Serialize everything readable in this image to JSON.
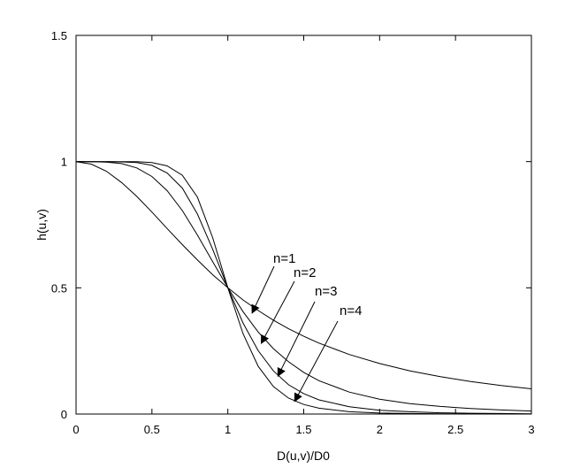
{
  "chart_data": {
    "type": "line",
    "title": "",
    "xlabel": "D(u,v)/D0",
    "ylabel": "h(u,v)",
    "xlim": [
      0,
      3
    ],
    "ylim": [
      0,
      1.5
    ],
    "xticks": [
      "0",
      "0.5",
      "1",
      "1.5",
      "2",
      "2.5",
      "3"
    ],
    "yticks": [
      "0",
      "0.5",
      "1",
      "1.5"
    ],
    "grid": false,
    "legend": "none",
    "line_color": "#000000",
    "formula_note_free": true,
    "series": [
      {
        "name": "n=1",
        "x": [
          0,
          0.1,
          0.2,
          0.3,
          0.4,
          0.5,
          0.6,
          0.7,
          0.8,
          0.9,
          1.0,
          1.1,
          1.2,
          1.3,
          1.4,
          1.5,
          1.6,
          1.8,
          2.0,
          2.2,
          2.4,
          2.6,
          2.8,
          3.0
        ],
        "values": [
          1.0,
          0.99,
          0.962,
          0.917,
          0.862,
          0.8,
          0.735,
          0.671,
          0.61,
          0.552,
          0.5,
          0.452,
          0.41,
          0.372,
          0.338,
          0.308,
          0.281,
          0.236,
          0.2,
          0.171,
          0.148,
          0.129,
          0.113,
          0.1
        ]
      },
      {
        "name": "n=2",
        "x": [
          0,
          0.1,
          0.2,
          0.3,
          0.4,
          0.5,
          0.6,
          0.7,
          0.8,
          0.9,
          1.0,
          1.1,
          1.2,
          1.3,
          1.4,
          1.5,
          1.6,
          1.8,
          2.0,
          2.2,
          2.4,
          2.6,
          2.8,
          3.0
        ],
        "values": [
          1.0,
          1.0,
          0.998,
          0.992,
          0.975,
          0.941,
          0.885,
          0.806,
          0.709,
          0.604,
          0.5,
          0.406,
          0.325,
          0.259,
          0.207,
          0.165,
          0.132,
          0.087,
          0.059,
          0.041,
          0.03,
          0.022,
          0.016,
          0.012
        ]
      },
      {
        "name": "n=3",
        "x": [
          0,
          0.1,
          0.2,
          0.3,
          0.4,
          0.5,
          0.6,
          0.7,
          0.8,
          0.9,
          1.0,
          1.1,
          1.2,
          1.3,
          1.4,
          1.5,
          1.6,
          1.8,
          2.0,
          2.2,
          2.4,
          2.6,
          2.8,
          3.0
        ],
        "values": [
          1.0,
          1.0,
          1.0,
          0.999,
          0.996,
          0.985,
          0.955,
          0.895,
          0.792,
          0.653,
          0.5,
          0.361,
          0.251,
          0.171,
          0.116,
          0.081,
          0.056,
          0.029,
          0.015,
          0.009,
          0.005,
          0.003,
          0.002,
          0.001
        ]
      },
      {
        "name": "n=4",
        "x": [
          0,
          0.1,
          0.2,
          0.3,
          0.4,
          0.5,
          0.6,
          0.7,
          0.8,
          0.9,
          1.0,
          1.1,
          1.2,
          1.3,
          1.4,
          1.5,
          1.6,
          1.8,
          2.0,
          2.2,
          2.4,
          2.6,
          2.8,
          3.0
        ],
        "values": [
          1.0,
          1.0,
          1.0,
          1.0,
          1.0,
          0.996,
          0.983,
          0.946,
          0.859,
          0.699,
          0.5,
          0.319,
          0.189,
          0.109,
          0.063,
          0.038,
          0.023,
          0.009,
          0.004,
          0.002,
          0.001,
          0.0,
          0.0,
          0.0
        ]
      }
    ],
    "annotations": [
      {
        "text": "n=1",
        "arrow_to": [
          1.16,
          0.4
        ]
      },
      {
        "text": "n=2",
        "arrow_to": [
          1.22,
          0.28
        ]
      },
      {
        "text": "n=3",
        "arrow_to": [
          1.33,
          0.15
        ]
      },
      {
        "text": "n=4",
        "arrow_to": [
          1.44,
          0.05
        ]
      }
    ]
  }
}
